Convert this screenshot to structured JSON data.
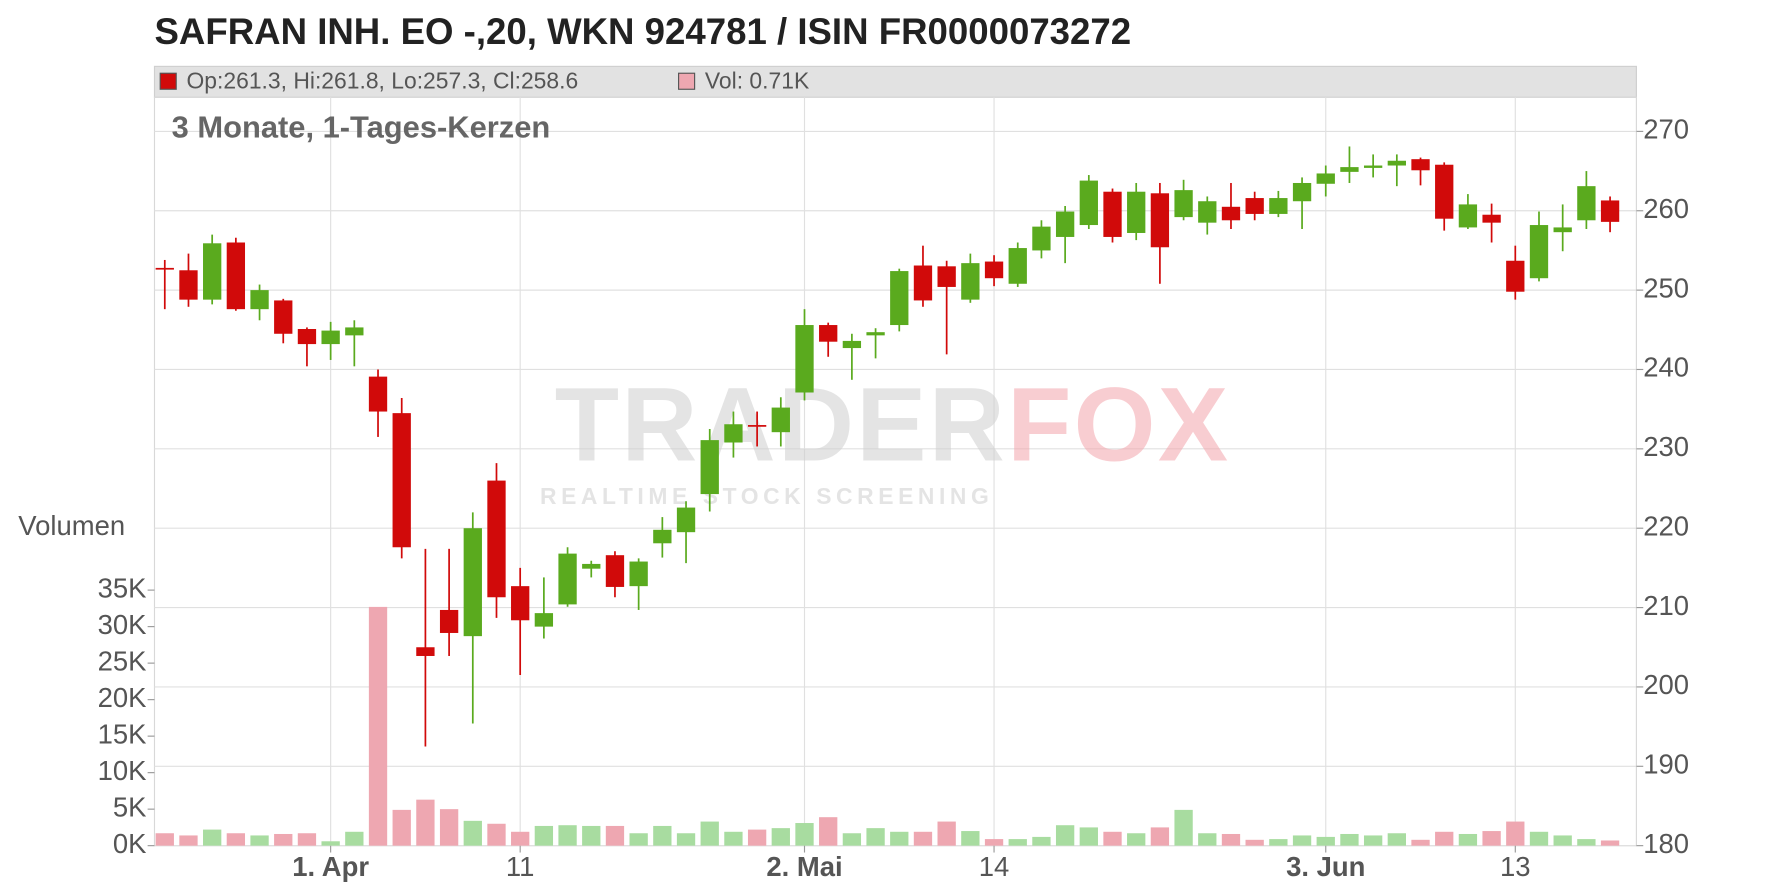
{
  "chart_data": {
    "type": "candlestick",
    "title": "SAFRAN INH. EO -,20, WKN 924781 / ISIN FR0000073272",
    "subtitle": "3 Monate, 1-Tages-Kerzen",
    "legend": {
      "ohlc": "Op:261.3, Hi:261.8, Lo:257.3, Cl:258.6",
      "volume": "Vol: 0.71K"
    },
    "volume_axis_label": "Volumen",
    "watermark": {
      "brand_left": "TRADER",
      "brand_right": "FOX",
      "tagline": "REALTIME STOCK SCREENING"
    },
    "categories": [
      null,
      null,
      null,
      null,
      null,
      null,
      null,
      "1. Apr",
      null,
      null,
      null,
      null,
      null,
      null,
      null,
      "11",
      null,
      null,
      null,
      null,
      null,
      null,
      null,
      null,
      null,
      null,
      null,
      "2. Mai",
      null,
      null,
      null,
      null,
      null,
      null,
      null,
      "14",
      null,
      null,
      null,
      null,
      null,
      null,
      null,
      null,
      null,
      null,
      null,
      null,
      null,
      "3. Jun",
      null,
      null,
      null,
      null,
      null,
      null,
      null,
      "13",
      null,
      null,
      null,
      null
    ],
    "open": [
      252.8,
      252.5,
      248.8,
      256.0,
      247.6,
      248.7,
      245.1,
      243.2,
      244.3,
      239.1,
      234.5,
      205.0,
      209.7,
      206.4,
      226.0,
      212.7,
      207.6,
      210.4,
      214.9,
      216.6,
      212.7,
      218.1,
      219.5,
      224.3,
      230.8,
      233.0,
      232.1,
      237.1,
      245.6,
      242.7,
      244.3,
      245.6,
      253.1,
      253.0,
      248.8,
      253.6,
      250.8,
      255.0,
      256.7,
      258.2,
      262.4,
      257.2,
      262.2,
      259.2,
      258.5,
      260.5,
      261.6,
      259.6,
      261.2,
      263.4,
      264.9,
      265.4,
      265.7,
      266.5,
      265.8,
      257.9,
      259.5,
      253.7,
      251.5,
      257.3,
      258.8,
      261.3
    ],
    "high": [
      253.8,
      254.6,
      257.0,
      256.6,
      250.7,
      248.9,
      245.3,
      246.0,
      246.2,
      240.0,
      236.4,
      217.4,
      217.4,
      222.0,
      228.2,
      215.0,
      213.8,
      217.6,
      215.9,
      217.1,
      216.2,
      221.4,
      223.4,
      232.5,
      234.7,
      234.7,
      236.5,
      247.6,
      245.9,
      244.5,
      245.2,
      252.7,
      255.6,
      253.7,
      254.6,
      254.4,
      256.0,
      258.8,
      260.6,
      264.5,
      262.8,
      263.5,
      263.5,
      263.9,
      261.8,
      263.5,
      262.4,
      262.5,
      264.2,
      265.7,
      268.1,
      267.1,
      267.1,
      266.7,
      266.1,
      262.1,
      260.9,
      255.6,
      259.9,
      260.8,
      265.0,
      261.8
    ],
    "low": [
      247.6,
      247.9,
      248.2,
      247.4,
      246.2,
      243.3,
      240.4,
      241.2,
      240.4,
      231.5,
      216.2,
      192.5,
      203.9,
      195.4,
      208.7,
      201.5,
      206.1,
      210.1,
      213.8,
      211.3,
      209.7,
      216.3,
      215.6,
      222.1,
      228.9,
      230.3,
      230.3,
      236.1,
      241.6,
      238.7,
      241.4,
      244.8,
      247.9,
      241.9,
      248.4,
      250.5,
      250.4,
      254.0,
      253.4,
      257.7,
      256.0,
      256.3,
      250.8,
      258.8,
      257.0,
      257.7,
      258.8,
      259.2,
      257.7,
      261.8,
      263.5,
      264.2,
      263.1,
      263.2,
      257.5,
      257.7,
      256.0,
      248.8,
      251.1,
      254.9,
      257.7,
      257.3
    ],
    "close": [
      252.6,
      248.8,
      255.9,
      247.6,
      250.0,
      244.5,
      243.2,
      244.9,
      245.3,
      234.7,
      217.6,
      203.9,
      206.8,
      220.0,
      211.3,
      208.4,
      209.3,
      216.8,
      215.5,
      212.6,
      215.8,
      219.8,
      222.6,
      231.1,
      233.1,
      232.9,
      235.2,
      245.6,
      243.5,
      243.6,
      244.7,
      252.4,
      248.7,
      250.4,
      253.4,
      251.5,
      255.3,
      258.0,
      259.9,
      263.8,
      256.7,
      262.4,
      255.4,
      262.6,
      261.2,
      258.8,
      259.6,
      261.6,
      263.5,
      264.7,
      265.5,
      265.7,
      266.3,
      265.1,
      259.0,
      260.8,
      258.5,
      249.8,
      258.2,
      257.9,
      263.1,
      258.6
    ],
    "volume": [
      1700,
      1400,
      2200,
      1700,
      1400,
      1600,
      1700,
      600,
      1900,
      32700,
      4900,
      6300,
      5000,
      3400,
      3000,
      1900,
      2700,
      2800,
      2700,
      2700,
      1700,
      2700,
      1700,
      3300,
      1900,
      2200,
      2400,
      3100,
      3900,
      1700,
      2400,
      1900,
      1900,
      3300,
      2000,
      900,
      900,
      1200,
      2800,
      2500,
      1900,
      1700,
      2500,
      4900,
      1700,
      1600,
      800,
      900,
      1400,
      1200,
      1600,
      1400,
      1700,
      800,
      1900,
      1600,
      2000,
      3300,
      1900,
      1400,
      900,
      710
    ],
    "up_color": "#5aaa1e",
    "down_color": "#d10a0a",
    "volume_up_color": "#a8dca0",
    "volume_down_color": "#eea7b1",
    "ylim": [
      180,
      274.3
    ],
    "yticks": [
      180,
      190,
      200,
      210,
      220,
      230,
      240,
      250,
      260,
      270
    ],
    "volume_ylim": [
      0,
      102500
    ],
    "volume_ticks": [
      {
        "value": 0,
        "label": "0K"
      },
      {
        "value": 5000,
        "label": "5K"
      },
      {
        "value": 10000,
        "label": "10K"
      },
      {
        "value": 15000,
        "label": "15K"
      },
      {
        "value": 20000,
        "label": "20K"
      },
      {
        "value": 25000,
        "label": "25K"
      },
      {
        "value": 30000,
        "label": "30K"
      },
      {
        "value": 35000,
        "label": "35K"
      }
    ],
    "grid": true
  }
}
